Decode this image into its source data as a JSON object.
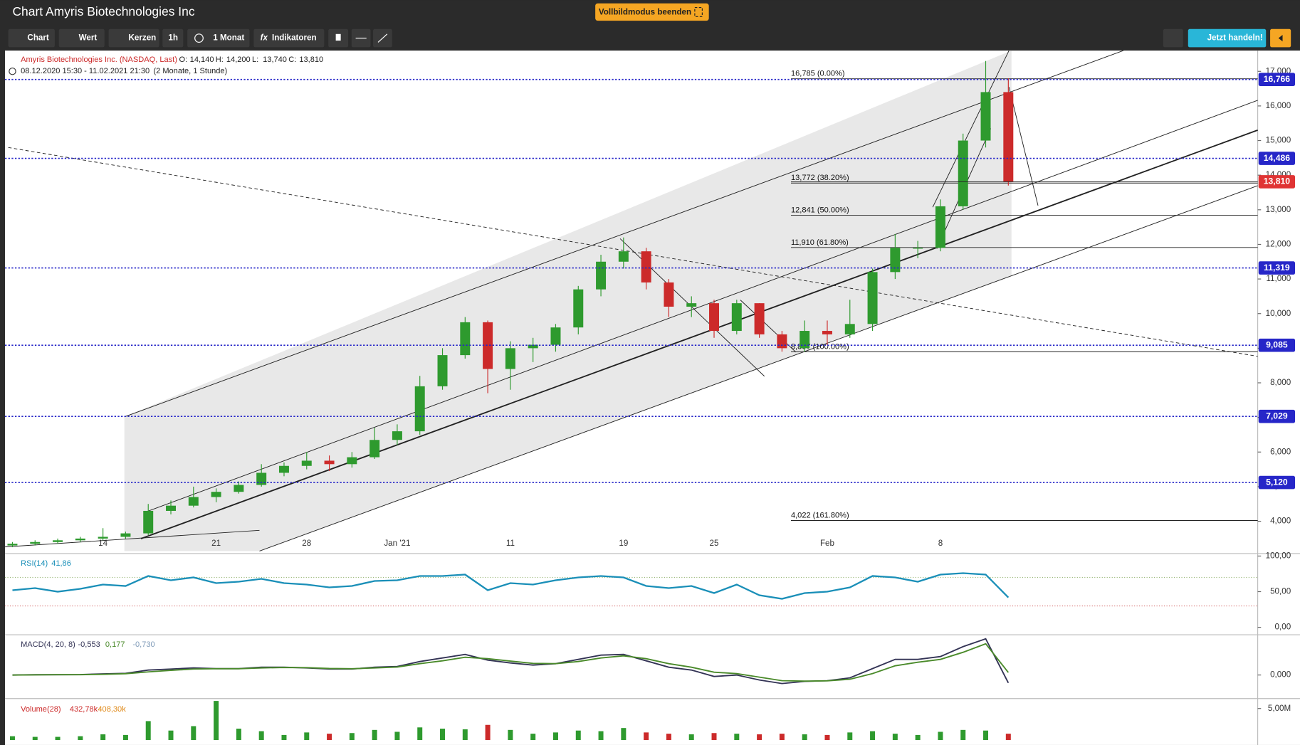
{
  "header": {
    "title": "Chart Amyris Biotechnologies Inc",
    "fullscreen_button": "Vollbildmodus beenden"
  },
  "toolbar": {
    "buttons": [
      "Chart",
      "Wert",
      "Kerzen",
      "1h",
      "1 Monat",
      "Indikatoren"
    ],
    "trade_button": "Jetzt handeln!"
  },
  "chart_data": {
    "type": "candlestick",
    "instrument": "Amyris Biotechnologies Inc. (NASDAQ, Last)",
    "last_bar": [
      {
        "name": "O:",
        "value": 14.14,
        "label": "14,140"
      },
      {
        "name": "H:",
        "value": 14.2,
        "label": "14,200"
      },
      {
        "name": "L:",
        "value": 13.74,
        "label": "13,740"
      },
      {
        "name": "C:",
        "value": 13.81,
        "label": "13,810"
      }
    ],
    "period": "08.12.2020 15:30 - 11.02.2021 21:30",
    "period_note": "(2 Monate, 1 Stunde)",
    "categories": [
      null,
      null,
      null,
      null,
      "14",
      null,
      null,
      null,
      null,
      "21",
      null,
      null,
      null,
      "28",
      null,
      null,
      null,
      "Jan '21",
      null,
      null,
      null,
      null,
      "11",
      null,
      null,
      null,
      null,
      "19",
      null,
      null,
      null,
      "25",
      null,
      null,
      null,
      null,
      "Feb",
      null,
      null,
      null,
      null,
      "8",
      null,
      null,
      null
    ],
    "open": [
      3.3,
      3.35,
      3.4,
      3.45,
      3.5,
      3.55,
      3.65,
      4.3,
      4.45,
      4.7,
      4.85,
      5.05,
      5.4,
      5.6,
      5.75,
      5.65,
      5.85,
      6.35,
      6.6,
      7.9,
      8.8,
      9.75,
      8.4,
      9.0,
      9.1,
      9.6,
      10.7,
      11.5,
      11.8,
      10.9,
      10.2,
      10.3,
      9.5,
      10.3,
      9.4,
      9.0,
      9.5,
      9.4,
      9.7,
      11.2,
      11.9,
      11.9,
      13.1,
      15.0,
      16.4
    ],
    "high": [
      3.4,
      3.45,
      3.5,
      3.55,
      3.8,
      3.7,
      4.5,
      4.6,
      5.0,
      4.95,
      5.15,
      5.65,
      5.7,
      6.0,
      5.9,
      6.0,
      6.7,
      6.8,
      8.2,
      9.0,
      9.9,
      9.8,
      9.2,
      9.3,
      9.7,
      10.8,
      11.7,
      12.2,
      11.9,
      11.0,
      10.5,
      10.4,
      10.4,
      10.3,
      9.5,
      9.8,
      9.8,
      10.4,
      11.3,
      12.3,
      12.1,
      13.3,
      15.2,
      17.3,
      16.8
    ],
    "low": [
      3.25,
      3.3,
      3.35,
      3.4,
      3.45,
      3.5,
      3.6,
      4.2,
      4.4,
      4.55,
      4.8,
      5.0,
      5.3,
      5.5,
      5.45,
      5.55,
      5.8,
      6.2,
      6.5,
      7.8,
      8.7,
      7.7,
      7.8,
      8.6,
      8.9,
      9.4,
      10.5,
      11.3,
      10.7,
      9.9,
      9.9,
      9.3,
      9.4,
      9.3,
      8.9,
      8.9,
      9.1,
      9.3,
      9.5,
      11.0,
      11.6,
      11.8,
      13.0,
      14.8,
      13.7
    ],
    "close": [
      3.35,
      3.4,
      3.45,
      3.5,
      3.55,
      3.65,
      4.3,
      4.45,
      4.7,
      4.85,
      5.05,
      5.4,
      5.6,
      5.75,
      5.65,
      5.85,
      6.35,
      6.6,
      7.9,
      8.8,
      9.75,
      8.4,
      9.0,
      9.1,
      9.6,
      10.7,
      11.5,
      11.8,
      10.9,
      10.2,
      10.3,
      9.5,
      10.3,
      9.4,
      9.0,
      9.5,
      9.4,
      9.7,
      11.2,
      11.9,
      11.9,
      13.1,
      15.0,
      16.4,
      13.81
    ],
    "up_color": "#2e9a2e",
    "down_color": "#cc2a2a",
    "ylim": [
      3.05,
      17.6
    ],
    "yticks": [
      {
        "value": 4,
        "label": "4,000"
      },
      {
        "value": 5,
        "label": "5,000"
      },
      {
        "value": 6,
        "label": "6,000"
      },
      {
        "value": 7,
        "label": "7,000"
      },
      {
        "value": 8,
        "label": "8,000"
      },
      {
        "value": 9,
        "label": "9,000"
      },
      {
        "value": 10,
        "label": "10,000"
      },
      {
        "value": 11,
        "label": "11,000"
      },
      {
        "value": 12,
        "label": "12,000"
      },
      {
        "value": 13,
        "label": "13,000"
      },
      {
        "value": 14,
        "label": "14,000"
      },
      {
        "value": 15,
        "label": "15,000"
      },
      {
        "value": 16,
        "label": "16,000"
      },
      {
        "value": 17,
        "label": "17,000"
      }
    ],
    "levels": [
      {
        "value": 16.766,
        "label": "16,766"
      },
      {
        "value": 14.486,
        "label": "14,486"
      },
      {
        "value": 11.319,
        "label": "11,319"
      },
      {
        "value": 9.085,
        "label": "9,085"
      },
      {
        "value": 7.029,
        "label": "7,029"
      },
      {
        "value": 5.12,
        "label": "5,120"
      }
    ],
    "level_color": "#2626c8",
    "current": {
      "value": 13.81,
      "label": "13,810"
    },
    "current_color": "#e03434",
    "fib": [
      {
        "value": 16.785,
        "label": "16,785 (0.00%)"
      },
      {
        "value": 13.772,
        "label": "13,772 (38.20%)"
      },
      {
        "value": 12.841,
        "label": "12,841 (50.00%)"
      },
      {
        "value": 11.91,
        "label": "11,910 (61.80%)"
      },
      {
        "value": 8.897,
        "label": "8,897 (100.00%)"
      },
      {
        "value": 4.022,
        "label": "4,022 (161.80%)"
      }
    ]
  },
  "rsi": {
    "type": "line",
    "title": "RSI(14)",
    "last": {
      "value": 41.86,
      "label": "41,86"
    },
    "color": "#1a8fb8",
    "values": [
      52,
      55,
      50,
      54,
      60,
      58,
      72,
      66,
      70,
      62,
      64,
      68,
      62,
      60,
      56,
      58,
      65,
      66,
      72,
      72,
      74,
      52,
      62,
      60,
      66,
      70,
      72,
      70,
      58,
      55,
      58,
      48,
      60,
      45,
      40,
      48,
      50,
      56,
      72,
      70,
      64,
      74,
      76,
      74,
      41.86
    ],
    "bands": [
      30,
      70
    ],
    "ylim": [
      0,
      100
    ],
    "yticks": [
      {
        "value": 0,
        "label": "0,00"
      },
      {
        "value": 50,
        "label": "50,00"
      },
      {
        "value": 100,
        "label": "100,00"
      }
    ]
  },
  "macd": {
    "type": "line",
    "title": "MACD(4, 20, 8)",
    "last": [
      {
        "value": -0.553,
        "label": "-0,553",
        "color": "#333355"
      },
      {
        "value": 0.177,
        "label": "0,177",
        "color": "#4a8a2a"
      },
      {
        "value": -0.73,
        "label": "-0,730",
        "color": "#7f9ab8"
      }
    ],
    "series": [
      {
        "color": "#333355",
        "values": [
          0,
          0.02,
          0.02,
          0.03,
          0.08,
          0.12,
          0.35,
          0.42,
          0.5,
          0.45,
          0.45,
          0.55,
          0.55,
          0.5,
          0.42,
          0.42,
          0.55,
          0.6,
          0.95,
          1.2,
          1.45,
          1.05,
          0.85,
          0.7,
          0.8,
          1.1,
          1.4,
          1.45,
          1.0,
          0.55,
          0.35,
          -0.1,
          0.0,
          -0.35,
          -0.6,
          -0.45,
          -0.4,
          -0.2,
          0.45,
          1.1,
          1.1,
          1.3,
          2.0,
          2.55,
          -0.553
        ]
      },
      {
        "color": "#4a8a2a",
        "values": [
          0,
          0.01,
          0.02,
          0.02,
          0.05,
          0.09,
          0.22,
          0.33,
          0.42,
          0.44,
          0.44,
          0.5,
          0.53,
          0.52,
          0.46,
          0.44,
          0.5,
          0.56,
          0.8,
          1.0,
          1.25,
          1.15,
          0.98,
          0.82,
          0.8,
          0.95,
          1.2,
          1.35,
          1.15,
          0.8,
          0.55,
          0.2,
          0.1,
          -0.15,
          -0.4,
          -0.43,
          -0.41,
          -0.3,
          0.1,
          0.65,
          0.9,
          1.1,
          1.6,
          2.2,
          0.177
        ]
      }
    ],
    "ylim": [
      -1.6,
      2.6
    ],
    "yticks": [
      {
        "value": 0,
        "label": "0,000"
      }
    ]
  },
  "volume": {
    "type": "bar",
    "title": "Volume(28)",
    "last": [
      {
        "value": 432780,
        "label": "432,78k",
        "color": "#cc2a2a"
      },
      {
        "value": 408300,
        "label": "408,30k",
        "color": "#e08a1a"
      }
    ],
    "values": [
      600000,
      500000,
      500000,
      600000,
      900000,
      800000,
      3000000,
      1500000,
      2200000,
      6200000,
      1800000,
      1400000,
      800000,
      1200000,
      1000000,
      1100000,
      1600000,
      1300000,
      2000000,
      1800000,
      1700000,
      2400000,
      1600000,
      1000000,
      1200000,
      1500000,
      1400000,
      1900000,
      1200000,
      1000000,
      900000,
      1100000,
      1000000,
      900000,
      1000000,
      900000,
      800000,
      1200000,
      1400000,
      1000000,
      800000,
      1300000,
      1600000,
      1500000,
      1000000
    ],
    "ylim": [
      0,
      6500000
    ],
    "yticks": [
      {
        "value": 5000000,
        "label": "5,00M"
      }
    ]
  }
}
